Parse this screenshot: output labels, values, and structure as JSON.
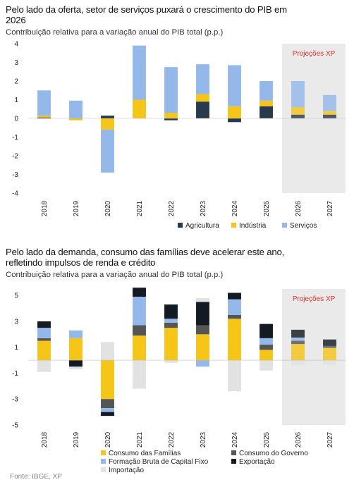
{
  "colors": {
    "agricultura": "#2a3a4e",
    "industria": "#f5c518",
    "servicos": "#94b8ea",
    "consumo_familias": "#f5c518",
    "consumo_governo": "#555555",
    "fbcf": "#94b8ea",
    "exportacao": "#141a24",
    "importacao": "#e2e2e2",
    "projection_bg": "#eaeaea",
    "projection_text": "#e03030"
  },
  "chart_data": [
    {
      "type": "bar",
      "stacked": true,
      "title": "Pelo lado da oferta, setor de serviços puxará o crescimento do PIB em 2026",
      "subtitle": "Contribuição relativa para a variação anual do PIB total (p.p.)",
      "categories": [
        "2018",
        "2019",
        "2020",
        "2021",
        "2022",
        "2023",
        "2024",
        "2025",
        "2026",
        "2027"
      ],
      "ylim": [
        -4,
        4
      ],
      "yticks": [
        "-4",
        "-3",
        "-2",
        "-1",
        "0",
        "1",
        "2",
        "3",
        "4"
      ],
      "projection_label": "Projeções XP",
      "projection_start_index": 8,
      "series": [
        {
          "name": "Agricultura",
          "color_key": "agricultura",
          "values": [
            0.05,
            0.0,
            0.15,
            0.0,
            -0.1,
            0.9,
            -0.2,
            0.65,
            0.2,
            0.2
          ]
        },
        {
          "name": "Indústria",
          "color_key": "industria",
          "values": [
            0.1,
            -0.1,
            -0.6,
            1.0,
            0.3,
            0.4,
            0.65,
            0.3,
            0.4,
            0.2
          ]
        },
        {
          "name": "Serviços",
          "color_key": "servicos",
          "values": [
            1.35,
            0.95,
            -2.3,
            2.9,
            2.45,
            1.6,
            2.2,
            1.05,
            1.4,
            0.85
          ]
        }
      ]
    },
    {
      "type": "bar",
      "stacked": true,
      "title": "Pelo lado da demanda, consumo das famílias deve acelerar este ano, refletindo impulsos de renda e crédito",
      "subtitle": "Contribuição relativa para a variação anual do PIB total (p.p.)",
      "categories": [
        "2018",
        "2019",
        "2020",
        "2021",
        "2022",
        "2023",
        "2024",
        "2025",
        "2026",
        "2027"
      ],
      "ylim": [
        -5,
        5.5
      ],
      "yticks": [
        "-5",
        "-3",
        "-1",
        "1",
        "3",
        "5"
      ],
      "projection_label": "Projeções XP",
      "projection_start_index": 8,
      "series": [
        {
          "name": "Consumo das Famílias",
          "color_key": "consumo_familias",
          "values": [
            1.5,
            1.7,
            -3.0,
            1.9,
            2.5,
            2.0,
            3.2,
            0.8,
            1.25,
            0.95
          ]
        },
        {
          "name": "Consumo do Governo",
          "color_key": "consumo_governo",
          "values": [
            0.2,
            0.0,
            -0.7,
            0.8,
            0.4,
            0.7,
            0.3,
            0.4,
            0.25,
            0.15
          ]
        },
        {
          "name": "Formação Bruta de Capital Fixo",
          "color_key": "fbcf",
          "values": [
            0.8,
            0.6,
            -0.3,
            2.2,
            0.3,
            -0.5,
            1.2,
            0.5,
            0.25,
            0.0
          ]
        },
        {
          "name": "Exportação",
          "color_key": "exportacao",
          "values": [
            0.5,
            -0.5,
            -0.3,
            0.7,
            1.1,
            1.8,
            0.5,
            1.1,
            0.6,
            0.5
          ]
        },
        {
          "name": "Importação",
          "color_key": "importacao",
          "values": [
            -0.9,
            -0.2,
            1.4,
            -2.2,
            -0.2,
            0.3,
            -2.4,
            -0.8,
            -0.4,
            -0.35
          ]
        }
      ]
    }
  ],
  "footer": "Fonte: IBGE, XP"
}
